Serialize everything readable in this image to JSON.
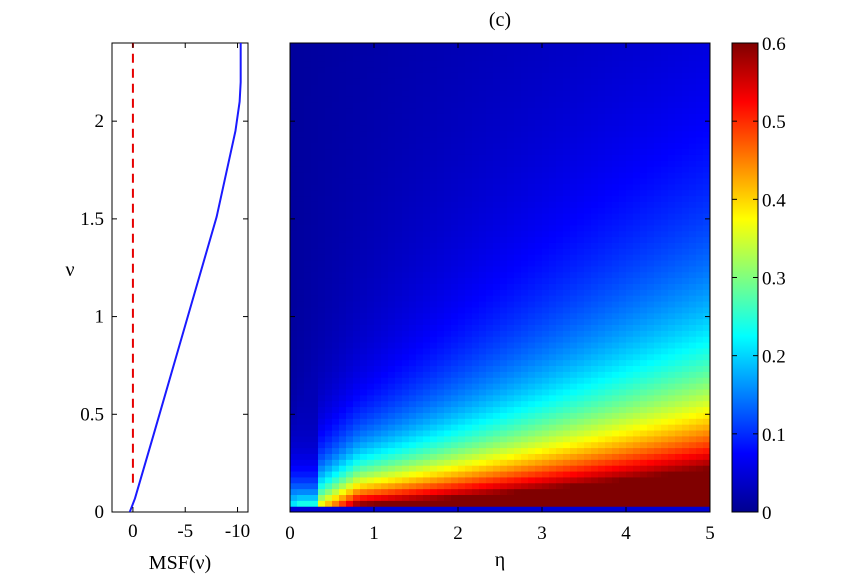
{
  "chart_data": [
    {
      "type": "line",
      "title": "",
      "xlabel": "MSF(ν)",
      "ylabel": "ν",
      "xlim": [
        2,
        -11
      ],
      "ylim": [
        0,
        2.4
      ],
      "x_axis_reversed": true,
      "x_ticks": [
        0,
        -5,
        -10
      ],
      "x_tick_labels": [
        "0",
        "-5",
        "-10"
      ],
      "y_ticks": [
        0,
        0.5,
        1,
        1.5,
        2
      ],
      "y_tick_labels": [
        "0",
        "0.5",
        "1",
        "1.5",
        "2"
      ],
      "grid": false,
      "series": [
        {
          "style": "solid",
          "color": "#1a1aff",
          "x": [
            0.3,
            -0.2,
            -2.0,
            -4.0,
            -6.0,
            -8.0,
            -9.8,
            -10.2,
            -10.3,
            -10.3
          ],
          "y": [
            0.0,
            0.07,
            0.4,
            0.77,
            1.14,
            1.51,
            1.95,
            2.1,
            2.2,
            2.4
          ]
        },
        {
          "style": "dashed",
          "color": "#e60000",
          "x": [
            0,
            0
          ],
          "y": [
            0.15,
            2.4
          ]
        }
      ]
    },
    {
      "type": "heatmap",
      "title": "(c)",
      "xlabel": "η",
      "ylabel": "",
      "xlim": [
        0,
        5
      ],
      "ylim": [
        0,
        2.4
      ],
      "x_ticks": [
        0,
        1,
        2,
        3,
        4,
        5
      ],
      "x_tick_labels": [
        "0",
        "1",
        "2",
        "3",
        "4",
        "5"
      ],
      "y_tick_labels_shown": false,
      "value_description": "value increases with η and decreases with ν; saturates at 0.6 near ν≈0",
      "grid": false,
      "colorbar": {
        "colormap": "jet",
        "range": [
          0,
          0.6
        ],
        "ticks": [
          0,
          0.1,
          0.2,
          0.3,
          0.4,
          0.5,
          0.6
        ],
        "tick_labels": [
          "0",
          "0.1",
          "0.2",
          "0.3",
          "0.4",
          "0.5",
          "0.6"
        ]
      }
    }
  ]
}
